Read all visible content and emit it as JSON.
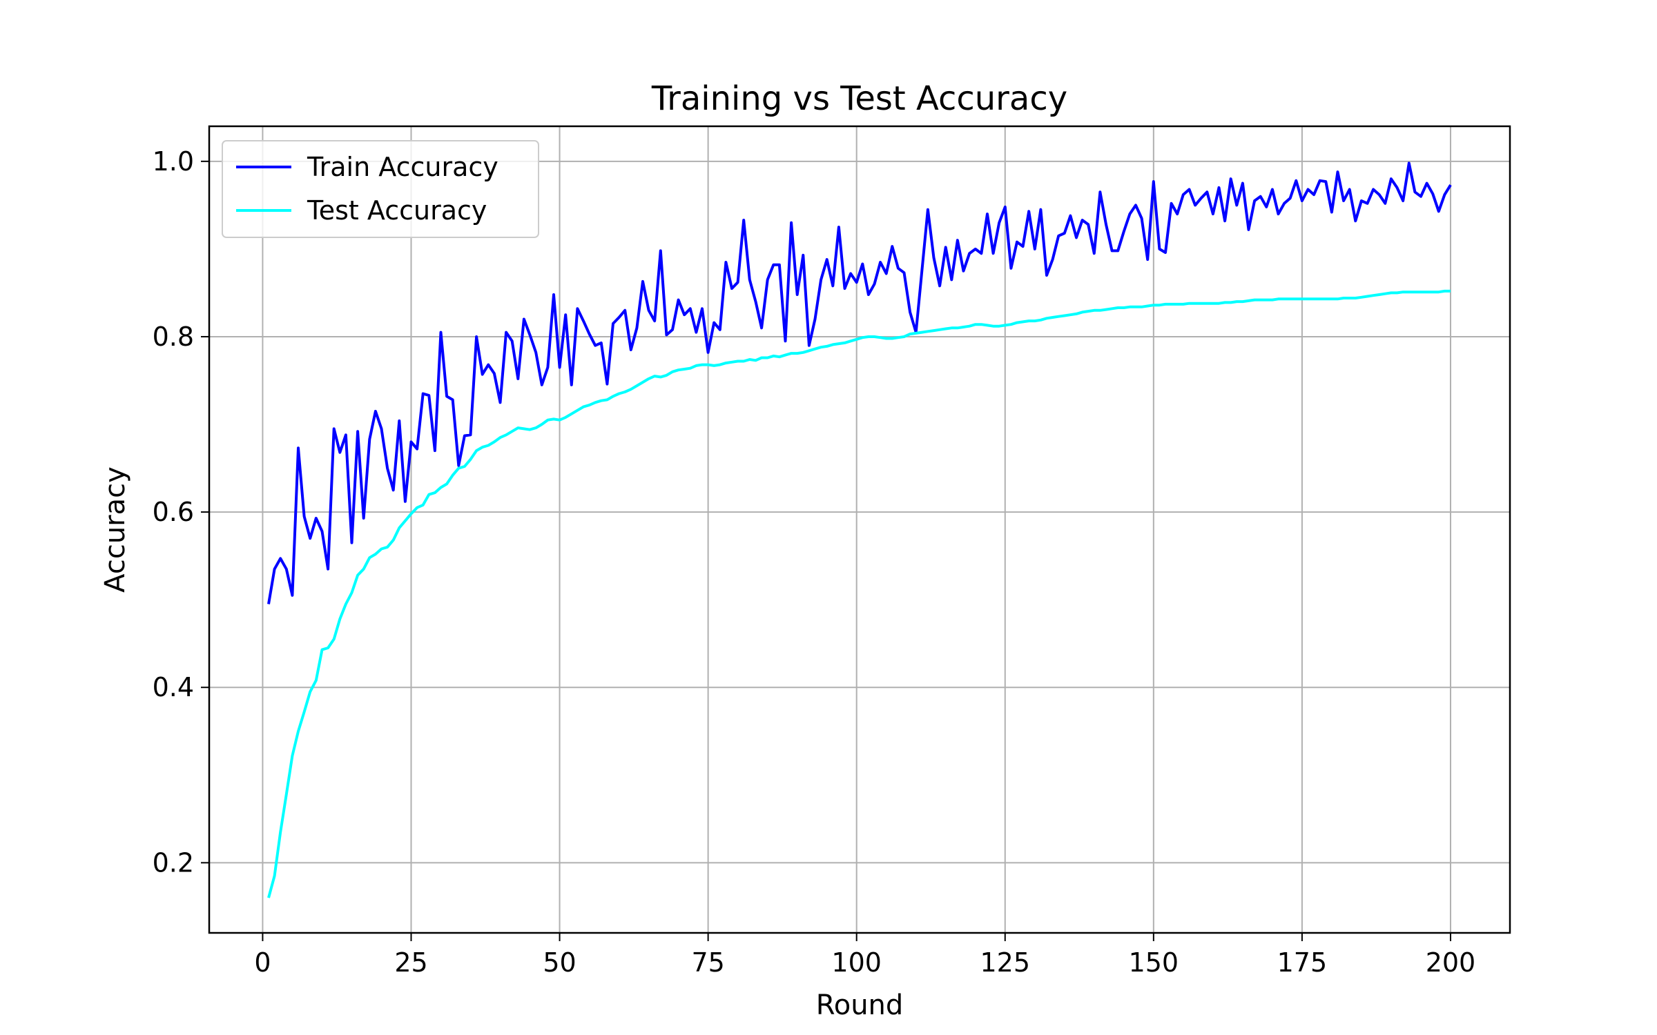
{
  "chart_data": {
    "type": "line",
    "title": "Training vs Test Accuracy",
    "xlabel": "Round",
    "ylabel": "Accuracy",
    "xlim": [
      -9,
      210
    ],
    "ylim": [
      0.12,
      1.04
    ],
    "xticks": [
      0,
      25,
      50,
      75,
      100,
      125,
      150,
      175,
      200
    ],
    "yticks": [
      0.2,
      0.4,
      0.6,
      0.8,
      1.0
    ],
    "ytick_labels": [
      "0.2",
      "0.4",
      "0.6",
      "0.8",
      "1.0"
    ],
    "grid": true,
    "legend_position": "top-left",
    "series": [
      {
        "name": "Train Accuracy",
        "color": "#0000ff",
        "x": [
          1,
          2,
          3,
          4,
          5,
          6,
          7,
          8,
          9,
          10,
          11,
          12,
          13,
          14,
          15,
          16,
          17,
          18,
          19,
          20,
          21,
          22,
          23,
          24,
          25,
          26,
          27,
          28,
          29,
          30,
          31,
          32,
          33,
          34,
          35,
          36,
          37,
          38,
          39,
          40,
          41,
          42,
          43,
          44,
          45,
          46,
          47,
          48,
          49,
          50,
          51,
          52,
          53,
          54,
          55,
          56,
          57,
          58,
          59,
          60,
          61,
          62,
          63,
          64,
          65,
          66,
          67,
          68,
          69,
          70,
          71,
          72,
          73,
          74,
          75,
          76,
          77,
          78,
          79,
          80,
          81,
          82,
          83,
          84,
          85,
          86,
          87,
          88,
          89,
          90,
          91,
          92,
          93,
          94,
          95,
          96,
          97,
          98,
          99,
          100,
          101,
          102,
          103,
          104,
          105,
          106,
          107,
          108,
          109,
          110,
          111,
          112,
          113,
          114,
          115,
          116,
          117,
          118,
          119,
          120,
          121,
          122,
          123,
          124,
          125,
          126,
          127,
          128,
          129,
          130,
          131,
          132,
          133,
          134,
          135,
          136,
          137,
          138,
          139,
          140,
          141,
          142,
          143,
          144,
          145,
          146,
          147,
          148,
          149,
          150,
          151,
          152,
          153,
          154,
          155,
          156,
          157,
          158,
          159,
          160,
          161,
          162,
          163,
          164,
          165,
          166,
          167,
          168,
          169,
          170,
          171,
          172,
          173,
          174,
          175,
          176,
          177,
          178,
          179,
          180,
          181,
          182,
          183,
          184,
          185,
          186,
          187,
          188,
          189,
          190,
          191,
          192,
          193,
          194,
          195,
          196,
          197,
          198,
          199,
          200
        ],
        "y": [
          0.495,
          0.535,
          0.547,
          0.535,
          0.505,
          0.673,
          0.595,
          0.57,
          0.593,
          0.578,
          0.535,
          0.695,
          0.668,
          0.688,
          0.565,
          0.692,
          0.593,
          0.683,
          0.715,
          0.695,
          0.65,
          0.625,
          0.704,
          0.612,
          0.68,
          0.672,
          0.735,
          0.733,
          0.67,
          0.805,
          0.732,
          0.728,
          0.653,
          0.687,
          0.688,
          0.8,
          0.757,
          0.768,
          0.758,
          0.725,
          0.805,
          0.795,
          0.752,
          0.82,
          0.802,
          0.782,
          0.745,
          0.765,
          0.848,
          0.765,
          0.825,
          0.745,
          0.832,
          0.818,
          0.803,
          0.79,
          0.793,
          0.746,
          0.815,
          0.822,
          0.83,
          0.785,
          0.81,
          0.863,
          0.83,
          0.818,
          0.898,
          0.802,
          0.808,
          0.842,
          0.825,
          0.832,
          0.805,
          0.832,
          0.782,
          0.816,
          0.808,
          0.885,
          0.855,
          0.862,
          0.933,
          0.865,
          0.84,
          0.81,
          0.865,
          0.882,
          0.882,
          0.795,
          0.93,
          0.848,
          0.893,
          0.79,
          0.82,
          0.865,
          0.888,
          0.858,
          0.925,
          0.855,
          0.872,
          0.862,
          0.883,
          0.848,
          0.86,
          0.885,
          0.872,
          0.903,
          0.878,
          0.873,
          0.828,
          0.805,
          0.875,
          0.945,
          0.89,
          0.858,
          0.902,
          0.865,
          0.91,
          0.875,
          0.895,
          0.9,
          0.895,
          0.94,
          0.895,
          0.93,
          0.948,
          0.878,
          0.908,
          0.903,
          0.943,
          0.9,
          0.945,
          0.87,
          0.888,
          0.915,
          0.918,
          0.938,
          0.913,
          0.933,
          0.928,
          0.895,
          0.965,
          0.928,
          0.898,
          0.898,
          0.92,
          0.94,
          0.95,
          0.935,
          0.888,
          0.977,
          0.9,
          0.896,
          0.952,
          0.94,
          0.962,
          0.968,
          0.95,
          0.958,
          0.965,
          0.94,
          0.97,
          0.932,
          0.98,
          0.95,
          0.975,
          0.922,
          0.955,
          0.96,
          0.948,
          0.968,
          0.94,
          0.952,
          0.958,
          0.978,
          0.955,
          0.968,
          0.962,
          0.978,
          0.977,
          0.942,
          0.988,
          0.955,
          0.968,
          0.932,
          0.955,
          0.952,
          0.968,
          0.962,
          0.952,
          0.98,
          0.97,
          0.955,
          0.998,
          0.965,
          0.96,
          0.975,
          0.963,
          0.943,
          0.962,
          0.973
        ]
      },
      {
        "name": "Test Accuracy",
        "color": "#00ffff",
        "x": [
          1,
          2,
          3,
          4,
          5,
          6,
          7,
          8,
          9,
          10,
          11,
          12,
          13,
          14,
          15,
          16,
          17,
          18,
          19,
          20,
          21,
          22,
          23,
          24,
          25,
          26,
          27,
          28,
          29,
          30,
          31,
          32,
          33,
          34,
          35,
          36,
          37,
          38,
          39,
          40,
          41,
          42,
          43,
          44,
          45,
          46,
          47,
          48,
          49,
          50,
          51,
          52,
          53,
          54,
          55,
          56,
          57,
          58,
          59,
          60,
          61,
          62,
          63,
          64,
          65,
          66,
          67,
          68,
          69,
          70,
          71,
          72,
          73,
          74,
          75,
          76,
          77,
          78,
          79,
          80,
          81,
          82,
          83,
          84,
          85,
          86,
          87,
          88,
          89,
          90,
          91,
          92,
          93,
          94,
          95,
          96,
          97,
          98,
          99,
          100,
          101,
          102,
          103,
          104,
          105,
          106,
          107,
          108,
          109,
          110,
          111,
          112,
          113,
          114,
          115,
          116,
          117,
          118,
          119,
          120,
          121,
          122,
          123,
          124,
          125,
          126,
          127,
          128,
          129,
          130,
          131,
          132,
          133,
          134,
          135,
          136,
          137,
          138,
          139,
          140,
          141,
          142,
          143,
          144,
          145,
          146,
          147,
          148,
          149,
          150,
          151,
          152,
          153,
          154,
          155,
          156,
          157,
          158,
          159,
          160,
          161,
          162,
          163,
          164,
          165,
          166,
          167,
          168,
          169,
          170,
          171,
          172,
          173,
          174,
          175,
          176,
          177,
          178,
          179,
          180,
          181,
          182,
          183,
          184,
          185,
          186,
          187,
          188,
          189,
          190,
          191,
          192,
          193,
          194,
          195,
          196,
          197,
          198,
          199,
          200
        ],
        "y": [
          0.16,
          0.185,
          0.235,
          0.278,
          0.322,
          0.35,
          0.372,
          0.395,
          0.408,
          0.443,
          0.445,
          0.455,
          0.478,
          0.495,
          0.508,
          0.528,
          0.535,
          0.548,
          0.552,
          0.558,
          0.56,
          0.568,
          0.582,
          0.59,
          0.598,
          0.605,
          0.608,
          0.62,
          0.622,
          0.628,
          0.632,
          0.642,
          0.65,
          0.652,
          0.66,
          0.67,
          0.674,
          0.676,
          0.68,
          0.685,
          0.688,
          0.692,
          0.696,
          0.695,
          0.694,
          0.696,
          0.7,
          0.705,
          0.706,
          0.705,
          0.708,
          0.712,
          0.716,
          0.72,
          0.722,
          0.725,
          0.727,
          0.728,
          0.732,
          0.735,
          0.737,
          0.74,
          0.744,
          0.748,
          0.752,
          0.755,
          0.754,
          0.756,
          0.76,
          0.762,
          0.763,
          0.764,
          0.767,
          0.768,
          0.768,
          0.767,
          0.768,
          0.77,
          0.771,
          0.772,
          0.772,
          0.774,
          0.773,
          0.776,
          0.776,
          0.778,
          0.777,
          0.779,
          0.781,
          0.781,
          0.782,
          0.784,
          0.786,
          0.788,
          0.789,
          0.791,
          0.792,
          0.793,
          0.795,
          0.797,
          0.799,
          0.8,
          0.8,
          0.799,
          0.798,
          0.798,
          0.799,
          0.8,
          0.803,
          0.804,
          0.805,
          0.806,
          0.807,
          0.808,
          0.809,
          0.81,
          0.81,
          0.811,
          0.812,
          0.814,
          0.814,
          0.813,
          0.812,
          0.812,
          0.813,
          0.814,
          0.816,
          0.817,
          0.818,
          0.818,
          0.819,
          0.821,
          0.822,
          0.823,
          0.824,
          0.825,
          0.826,
          0.828,
          0.829,
          0.83,
          0.83,
          0.831,
          0.832,
          0.833,
          0.833,
          0.834,
          0.834,
          0.834,
          0.835,
          0.836,
          0.836,
          0.837,
          0.837,
          0.837,
          0.837,
          0.838,
          0.838,
          0.838,
          0.838,
          0.838,
          0.838,
          0.839,
          0.839,
          0.84,
          0.84,
          0.841,
          0.842,
          0.842,
          0.842,
          0.842,
          0.843,
          0.843,
          0.843,
          0.843,
          0.843,
          0.843,
          0.843,
          0.843,
          0.843,
          0.843,
          0.843,
          0.844,
          0.844,
          0.844,
          0.845,
          0.846,
          0.847,
          0.848,
          0.849,
          0.85,
          0.85,
          0.851,
          0.851,
          0.851,
          0.851,
          0.851,
          0.851,
          0.851,
          0.852,
          0.852
        ]
      }
    ]
  }
}
